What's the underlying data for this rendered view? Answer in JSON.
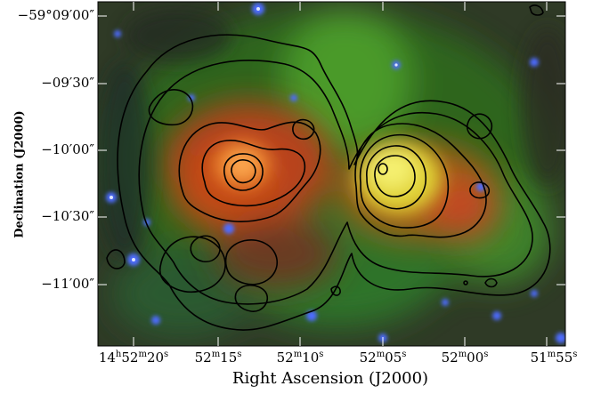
{
  "axes": {
    "xlabel": "Right Ascension (J2000)",
    "ylabel": "Declination (J2000)",
    "y_ticks": [
      "−59°09′00″",
      "−09′30″",
      "−10′00″",
      "−10′30″",
      "−11′00″"
    ],
    "x_ticks": [
      {
        "h": "14",
        "hu": "h",
        "m": "52",
        "mu": "m",
        "s": "20",
        "su": "s"
      },
      {
        "h": "",
        "hu": "",
        "m": "52",
        "mu": "m",
        "s": "15",
        "su": "s"
      },
      {
        "h": "",
        "hu": "",
        "m": "52",
        "mu": "m",
        "s": "10",
        "su": "s"
      },
      {
        "h": "",
        "hu": "",
        "m": "52",
        "mu": "m",
        "s": "05",
        "su": "s"
      },
      {
        "h": "",
        "hu": "",
        "m": "52",
        "mu": "m",
        "s": "00",
        "su": "s"
      },
      {
        "h": "",
        "hu": "",
        "m": "51",
        "mu": "m",
        "s": "55",
        "su": "s"
      }
    ]
  },
  "image": {
    "type": "false-color infrared composite with black contour overlay",
    "channels": {
      "red": "#d84a1e",
      "green": "#3cba28",
      "blue": "#3a5cff"
    }
  }
}
